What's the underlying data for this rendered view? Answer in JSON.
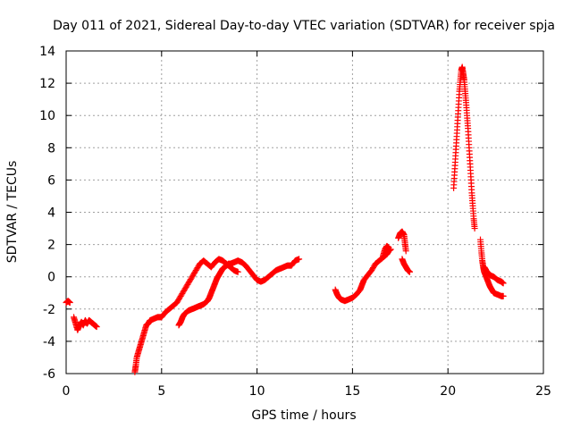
{
  "chart_data": {
    "type": "scatter",
    "title": "Day 011 of 2021, Sidereal Day-to-day VTEC variation (SDTVAR) for receiver spja",
    "xlabel": "GPS time / hours",
    "ylabel": "SDTVAR / TECUs",
    "xlim": [
      0,
      25
    ],
    "ylim": [
      -6,
      14
    ],
    "xticks": [
      0,
      5,
      10,
      15,
      20,
      25
    ],
    "yticks": [
      -6,
      -4,
      -2,
      0,
      2,
      4,
      6,
      8,
      10,
      12,
      14
    ],
    "grid": true,
    "marker": "+",
    "series_color": "#ff0000",
    "series": [
      {
        "name": "SDTVAR",
        "segments": [
          [
            [
              0.0,
              -1.6
            ],
            [
              0.1,
              -1.5
            ],
            [
              0.2,
              -1.6
            ]
          ],
          [
            [
              0.4,
              -2.5
            ],
            [
              0.5,
              -2.9
            ],
            [
              0.6,
              -3.3
            ],
            [
              0.7,
              -3.0
            ],
            [
              0.8,
              -2.8
            ],
            [
              0.9,
              -3.0
            ],
            [
              1.0,
              -2.7
            ],
            [
              1.1,
              -2.9
            ],
            [
              1.2,
              -2.7
            ],
            [
              1.3,
              -2.8
            ],
            [
              1.4,
              -2.9
            ],
            [
              1.5,
              -3.0
            ],
            [
              1.6,
              -3.1
            ]
          ],
          [
            [
              3.6,
              -5.9
            ],
            [
              3.65,
              -5.5
            ],
            [
              3.7,
              -5.0
            ],
            [
              3.8,
              -4.6
            ],
            [
              3.9,
              -4.2
            ],
            [
              4.0,
              -3.8
            ],
            [
              4.1,
              -3.4
            ],
            [
              4.2,
              -3.0
            ],
            [
              4.3,
              -2.9
            ],
            [
              4.4,
              -2.7
            ],
            [
              4.6,
              -2.6
            ],
            [
              4.8,
              -2.5
            ],
            [
              5.0,
              -2.5
            ],
            [
              5.2,
              -2.2
            ],
            [
              5.4,
              -2.0
            ],
            [
              5.6,
              -1.8
            ],
            [
              5.8,
              -1.6
            ],
            [
              6.0,
              -1.2
            ],
            [
              6.2,
              -0.8
            ],
            [
              6.4,
              -0.4
            ],
            [
              6.6,
              0.0
            ],
            [
              6.8,
              0.4
            ],
            [
              7.0,
              0.8
            ],
            [
              7.2,
              1.0
            ],
            [
              7.4,
              0.8
            ],
            [
              7.6,
              0.6
            ],
            [
              7.8,
              0.9
            ],
            [
              8.0,
              1.1
            ],
            [
              8.2,
              1.0
            ],
            [
              8.4,
              0.8
            ],
            [
              8.6,
              0.6
            ],
            [
              8.8,
              0.4
            ],
            [
              9.0,
              0.3
            ]
          ],
          [
            [
              5.9,
              -3.0
            ],
            [
              6.0,
              -2.8
            ],
            [
              6.1,
              -2.5
            ],
            [
              6.2,
              -2.3
            ],
            [
              6.4,
              -2.1
            ],
            [
              6.6,
              -2.0
            ],
            [
              6.8,
              -1.9
            ],
            [
              7.0,
              -1.8
            ],
            [
              7.2,
              -1.7
            ],
            [
              7.4,
              -1.5
            ],
            [
              7.5,
              -1.3
            ],
            [
              7.6,
              -1.0
            ],
            [
              7.7,
              -0.7
            ],
            [
              7.8,
              -0.4
            ],
            [
              7.9,
              -0.1
            ],
            [
              8.0,
              0.1
            ],
            [
              8.1,
              0.3
            ],
            [
              8.2,
              0.5
            ],
            [
              8.3,
              0.6
            ],
            [
              8.4,
              0.7
            ],
            [
              8.5,
              0.8
            ],
            [
              8.6,
              0.8
            ],
            [
              8.8,
              0.9
            ],
            [
              9.0,
              1.0
            ],
            [
              9.2,
              0.9
            ],
            [
              9.4,
              0.7
            ],
            [
              9.6,
              0.4
            ],
            [
              9.8,
              0.1
            ],
            [
              10.0,
              -0.2
            ],
            [
              10.2,
              -0.3
            ],
            [
              10.4,
              -0.2
            ],
            [
              10.6,
              0.0
            ],
            [
              10.8,
              0.2
            ],
            [
              11.0,
              0.4
            ],
            [
              11.2,
              0.5
            ],
            [
              11.4,
              0.6
            ],
            [
              11.6,
              0.7
            ],
            [
              11.8,
              0.7
            ],
            [
              12.0,
              1.0
            ],
            [
              12.2,
              1.1
            ]
          ],
          [
            [
              14.1,
              -0.8
            ],
            [
              14.2,
              -1.1
            ],
            [
              14.3,
              -1.3
            ],
            [
              14.4,
              -1.4
            ],
            [
              14.6,
              -1.5
            ],
            [
              14.8,
              -1.4
            ],
            [
              15.0,
              -1.3
            ],
            [
              15.2,
              -1.1
            ],
            [
              15.4,
              -0.8
            ],
            [
              15.5,
              -0.5
            ],
            [
              15.6,
              -0.2
            ],
            [
              15.8,
              0.1
            ],
            [
              16.0,
              0.4
            ],
            [
              16.2,
              0.8
            ],
            [
              16.4,
              1.0
            ],
            [
              16.6,
              1.2
            ],
            [
              16.8,
              1.4
            ],
            [
              16.9,
              1.6
            ],
            [
              17.0,
              1.7
            ]
          ],
          [
            [
              16.6,
              1.3
            ],
            [
              16.7,
              1.7
            ],
            [
              16.8,
              1.9
            ],
            [
              16.9,
              1.8
            ]
          ],
          [
            [
              17.4,
              2.4
            ],
            [
              17.5,
              2.7
            ],
            [
              17.6,
              2.8
            ],
            [
              17.7,
              2.6
            ],
            [
              17.75,
              2.1
            ],
            [
              17.8,
              1.6
            ]
          ],
          [
            [
              17.6,
              1.1
            ],
            [
              17.7,
              0.8
            ],
            [
              17.8,
              0.6
            ],
            [
              17.9,
              0.4
            ],
            [
              18.0,
              0.3
            ]
          ],
          [
            [
              20.3,
              5.5
            ],
            [
              20.35,
              6.5
            ],
            [
              20.4,
              7.5
            ],
            [
              20.45,
              8.5
            ],
            [
              20.5,
              9.5
            ],
            [
              20.55,
              10.5
            ],
            [
              20.6,
              11.5
            ],
            [
              20.65,
              12.2
            ],
            [
              20.7,
              12.8
            ],
            [
              20.75,
              13.0
            ],
            [
              20.8,
              12.6
            ],
            [
              20.85,
              12.2
            ],
            [
              20.9,
              11.5
            ],
            [
              20.95,
              10.8
            ],
            [
              21.0,
              10.0
            ],
            [
              21.05,
              9.2
            ],
            [
              21.1,
              8.2
            ],
            [
              21.15,
              7.2
            ],
            [
              21.2,
              6.2
            ],
            [
              21.25,
              5.2
            ],
            [
              21.3,
              4.4
            ],
            [
              21.35,
              3.6
            ],
            [
              21.4,
              3.0
            ]
          ],
          [
            [
              21.7,
              2.3
            ],
            [
              21.75,
              1.6
            ],
            [
              21.8,
              1.0
            ],
            [
              21.85,
              0.6
            ],
            [
              21.9,
              0.3
            ],
            [
              22.0,
              0.0
            ],
            [
              22.1,
              -0.3
            ],
            [
              22.2,
              -0.6
            ],
            [
              22.3,
              -0.8
            ],
            [
              22.4,
              -1.0
            ],
            [
              22.6,
              -1.1
            ],
            [
              22.8,
              -1.2
            ],
            [
              22.9,
              -1.2
            ]
          ],
          [
            [
              21.9,
              0.6
            ],
            [
              22.0,
              0.4
            ],
            [
              22.2,
              0.1
            ],
            [
              22.4,
              0.0
            ],
            [
              22.6,
              -0.2
            ],
            [
              22.8,
              -0.3
            ],
            [
              22.9,
              -0.4
            ]
          ]
        ]
      }
    ]
  }
}
